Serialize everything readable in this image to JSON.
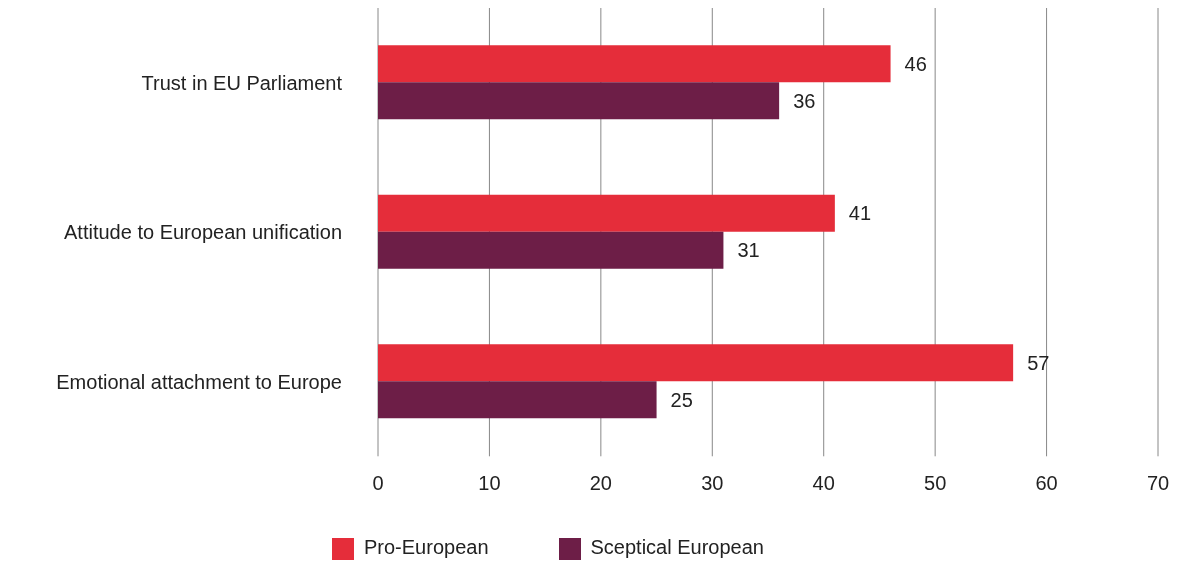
{
  "chart_data": {
    "type": "bar",
    "orientation": "horizontal",
    "categories": [
      "Trust in EU Parliament",
      "Attitude to European unification",
      "Emotional attachment to Europe"
    ],
    "series": [
      {
        "name": "Pro-European",
        "color": "#e52d3a",
        "values": [
          46,
          41,
          57
        ]
      },
      {
        "name": "Sceptical European",
        "color": "#6d1e47",
        "values": [
          36,
          31,
          25
        ]
      }
    ],
    "xlim": [
      0,
      70
    ],
    "xticks": [
      0,
      10,
      20,
      30,
      40,
      50,
      60,
      70
    ],
    "grid": "x",
    "legend": "bottom",
    "data_labels": true
  }
}
